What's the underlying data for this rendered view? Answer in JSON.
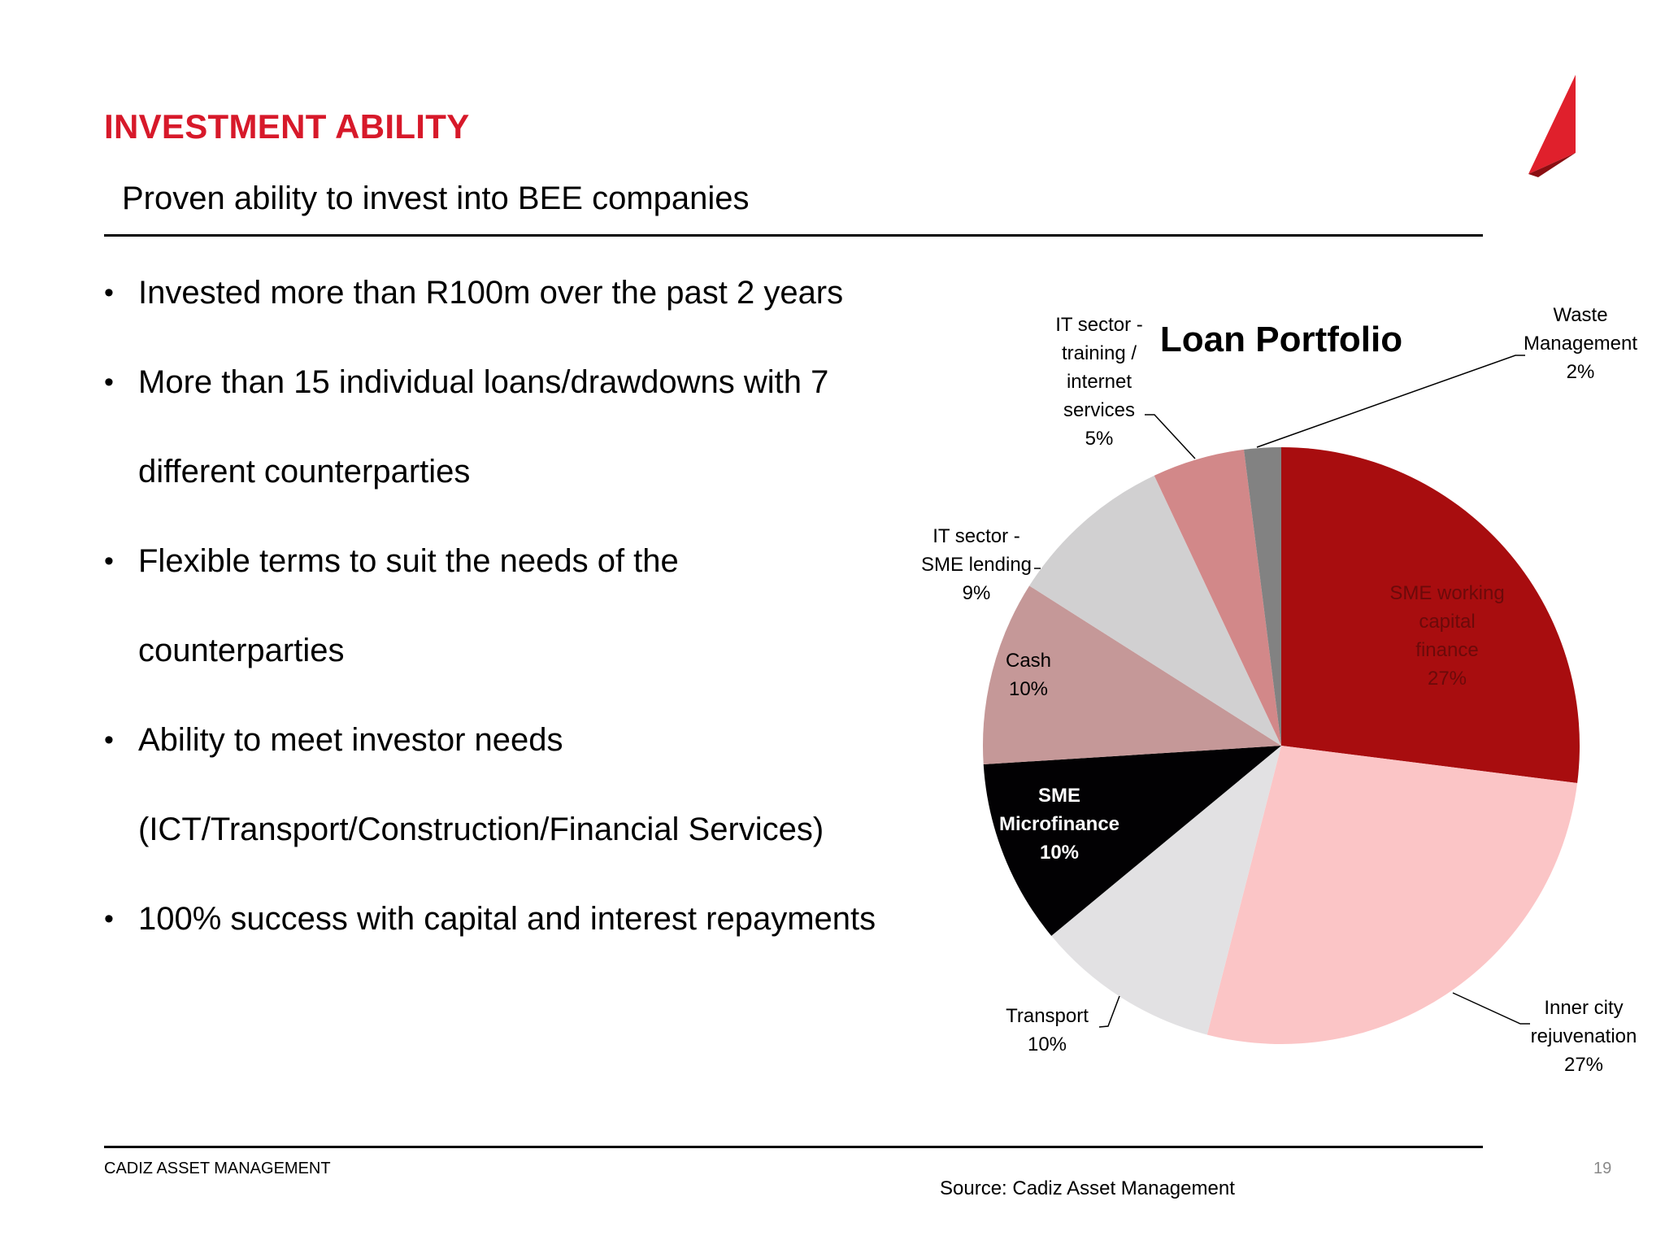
{
  "slide": {
    "title": "INVESTMENT ABILITY",
    "subtitle": "Proven ability to invest into BEE companies",
    "bullets": [
      "Invested more than R100m over the past 2 years",
      "More than 15 individual loans/drawdowns with 7 different counterparties",
      "Flexible terms to suit the needs of the counterparties",
      "Ability to meet investor needs (ICT/Transport/Construction/Financial Services)",
      "100% success with capital and interest repayments"
    ],
    "footer_left": "CADIZ ASSET MANAGEMENT",
    "page_number": "19",
    "source": "Source: Cadiz Asset Management",
    "bullet_glyph": "•",
    "accent_color": "#d7192a"
  },
  "chart_data": {
    "type": "pie",
    "title": "Loan Portfolio",
    "start": "12 o'clock, clockwise",
    "slices": [
      {
        "label_lines": [
          "SME working",
          "capital",
          "finance"
        ],
        "percent": 27,
        "color": "#a80d0f",
        "label_color": "#6b0a0a",
        "label_bold": false
      },
      {
        "label_lines": [
          "Inner city",
          "rejuvenation"
        ],
        "percent": 27,
        "color": "#fbc5c6",
        "label_color": "#000000",
        "label_bold": false
      },
      {
        "label_lines": [
          "Transport"
        ],
        "percent": 10,
        "color": "#e2e1e3",
        "label_color": "#000000",
        "label_bold": false
      },
      {
        "label_lines": [
          "SME",
          "Microfinance"
        ],
        "percent": 10,
        "color": "#020103",
        "label_color": "#ffffff",
        "label_bold": true
      },
      {
        "label_lines": [
          "Cash"
        ],
        "percent": 10,
        "color": "#c59898",
        "label_color": "#000000",
        "label_bold": false
      },
      {
        "label_lines": [
          "IT sector -",
          "SME lending"
        ],
        "percent": 9,
        "color": "#d1d0d1",
        "label_color": "#000000",
        "label_bold": false
      },
      {
        "label_lines": [
          "IT sector -",
          "training /",
          "internet",
          "services"
        ],
        "percent": 5,
        "color": "#d28889",
        "label_color": "#000000",
        "label_bold": false
      },
      {
        "label_lines": [
          "Waste",
          "Management"
        ],
        "percent": 2,
        "color": "#828282",
        "label_color": "#000000",
        "label_bold": false
      }
    ]
  }
}
